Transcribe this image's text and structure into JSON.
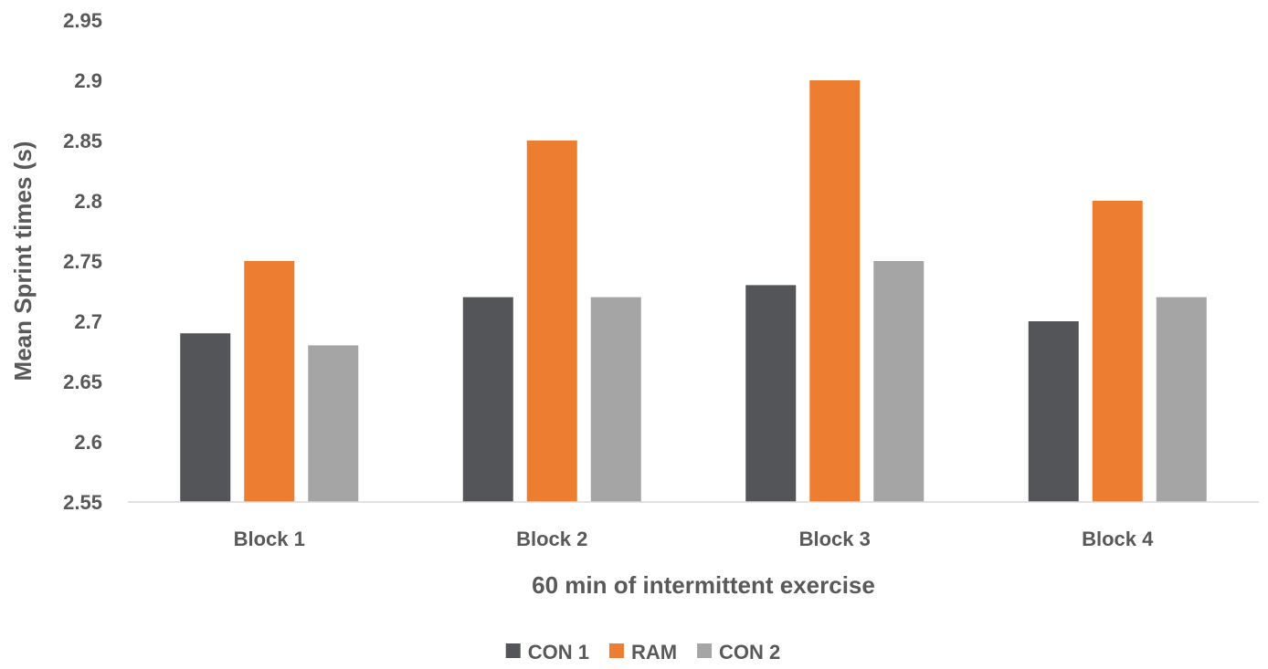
{
  "chart_data": {
    "type": "bar",
    "title": "",
    "xlabel": "60 min of intermittent exercise",
    "ylabel": "Mean Sprint times (s)",
    "ylim": [
      2.55,
      2.95
    ],
    "yticks": [
      "2.55",
      "2.6",
      "2.65",
      "2.7",
      "2.75",
      "2.8",
      "2.85",
      "2.9",
      "2.95"
    ],
    "ytick_values": [
      2.55,
      2.6,
      2.65,
      2.7,
      2.75,
      2.8,
      2.85,
      2.9,
      2.95
    ],
    "categories": [
      "Block 1",
      "Block 2",
      "Block 3",
      "Block 4"
    ],
    "series": [
      {
        "name": "CON 1",
        "color": "#545559",
        "values": [
          2.69,
          2.72,
          2.73,
          2.7
        ]
      },
      {
        "name": "RAM",
        "color": "#ED7D31",
        "values": [
          2.75,
          2.85,
          2.9,
          2.8
        ]
      },
      {
        "name": "CON 2",
        "color": "#A5A5A5",
        "values": [
          2.68,
          2.72,
          2.75,
          2.72
        ]
      }
    ],
    "grid": false,
    "legend_position": "bottom"
  }
}
